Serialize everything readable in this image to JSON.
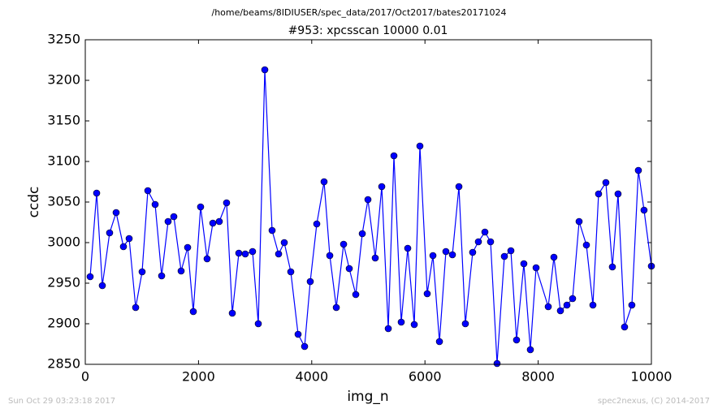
{
  "chart_data": {
    "type": "line",
    "suptitle": "/home/beams/8IDIUSER/spec_data/2017/Oct2017/bates20171024",
    "title": "#953: xpcsscan 10000 0.01",
    "xlabel": "img_n",
    "ylabel": "ccdc",
    "footer_left": "Sun Oct 29 03:23:18 2017",
    "footer_right": "spec2nexus, (C) 2014-2017",
    "xlim": [
      0,
      10000
    ],
    "xticks": [
      0,
      2000,
      4000,
      6000,
      8000,
      10000
    ],
    "ylim": [
      2850,
      3250
    ],
    "yticks": [
      2850,
      2900,
      2950,
      3000,
      3050,
      3100,
      3150,
      3200,
      3250
    ],
    "grid": false,
    "marker": "circle",
    "series": [
      {
        "color": "#0000ff",
        "x": [
          86,
          201,
          301,
          430,
          545,
          674,
          775,
          890,
          1004,
          1105,
          1234,
          1349,
          1463,
          1564,
          1693,
          1808,
          1908,
          2037,
          2152,
          2253,
          2367,
          2496,
          2597,
          2712,
          2826,
          2955,
          3056,
          3171,
          3300,
          3415,
          3515,
          3630,
          3759,
          3874,
          3974,
          4089,
          4218,
          4319,
          4434,
          4563,
          4663,
          4778,
          4893,
          4993,
          5122,
          5237,
          5352,
          5452,
          5581,
          5696,
          5811,
          5911,
          6040,
          6141,
          6256,
          6370,
          6485,
          6600,
          6714,
          6843,
          6944,
          7059,
          7159,
          7274,
          7403,
          7518,
          7618,
          7747,
          7862,
          7963,
          8178,
          8278,
          8393,
          8508,
          8608,
          8723,
          8852,
          8967,
          9067,
          9196,
          9311,
          9411,
          9526,
          9655,
          9770,
          9870,
          10000
        ],
        "values": [
          2958,
          3061,
          2947,
          3012,
          3037,
          2995,
          3005,
          2920,
          2964,
          3064,
          3047,
          2959,
          3026,
          3032,
          2965,
          2994,
          2915,
          3044,
          2980,
          3024,
          3026,
          3049,
          2913,
          2987,
          2986,
          2989,
          2900,
          3213,
          3015,
          2986,
          3000,
          2964,
          2887,
          2872,
          2952,
          3023,
          3075,
          2984,
          2920,
          2998,
          2968,
          2936,
          3011,
          3053,
          2981,
          3069,
          2894,
          3107,
          2902,
          2993,
          2899,
          3119,
          2937,
          2984,
          2878,
          2989,
          2985,
          3069,
          2900,
          2988,
          3001,
          3013,
          3001,
          2851,
          2983,
          2990,
          2880,
          2974,
          2868,
          2969,
          2921,
          2982,
          2916,
          2923,
          2931,
          3026,
          2997,
          2923,
          3060,
          3074,
          2970,
          3060,
          2896,
          2923,
          3089,
          3040,
          2971
        ]
      }
    ]
  }
}
